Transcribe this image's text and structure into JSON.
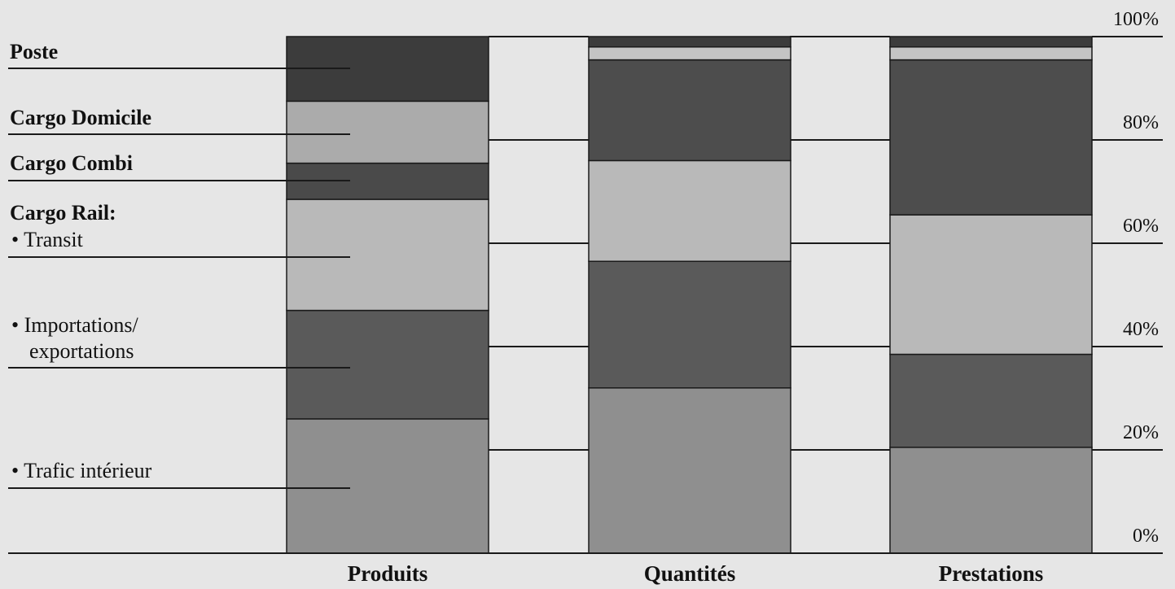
{
  "chart_data": {
    "type": "bar",
    "stacked": true,
    "categories": [
      "Produits",
      "Quantités",
      "Prestations"
    ],
    "series": [
      {
        "name": "Trafic intérieur",
        "color": "#8f8f8f",
        "values": [
          26,
          32,
          20.5
        ]
      },
      {
        "name": "Importations/exportations",
        "color": "#5a5a5a",
        "values": [
          21,
          24.5,
          18
        ]
      },
      {
        "name": "Transit",
        "color": "#b9b9b9",
        "values": [
          21.5,
          19.5,
          27
        ]
      },
      {
        "name": "Cargo Combi",
        "color": "#4a4a4a",
        "values": [
          7,
          0,
          0
        ]
      },
      {
        "name": "Cargo Domicile",
        "color": "#ababab",
        "values": [
          12,
          0,
          0
        ]
      },
      {
        "name": "Cargo Rail",
        "color": "#4d4d4d",
        "values": [
          0,
          19.5,
          30
        ]
      },
      {
        "name": "Cargo Domicile",
        "color": "#c4c4c4",
        "values": [
          0,
          2.5,
          2.5
        ]
      },
      {
        "name": "Poste",
        "color": "#3c3c3c",
        "values": [
          12.5,
          2,
          2
        ]
      }
    ],
    "ylim": [
      0,
      100
    ],
    "y_ticks": [
      "0%",
      "20%",
      "40%",
      "60%",
      "80%",
      "100%"
    ],
    "legend_position": "left",
    "legend": {
      "poste": "Poste",
      "cargo_domicile": "Cargo Domicile",
      "cargo_combi": "Cargo Combi",
      "cargo_rail": "Cargo Rail:",
      "transit": "• Transit",
      "import_export_1": "• Importations/",
      "import_export_2": "exportations",
      "trafic_interieur": "• Trafic intérieur"
    }
  }
}
